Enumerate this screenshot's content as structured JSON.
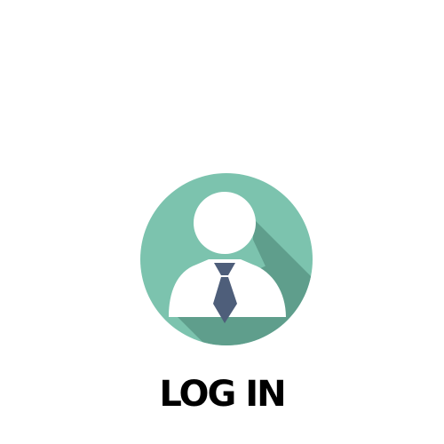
{
  "login": {
    "label": "LOG IN",
    "icon": "user-avatar-icon"
  },
  "colors": {
    "background": "#ffffff",
    "circle": "#7cc3ae",
    "shadow": "#5f9e8c",
    "figure": "#ffffff",
    "tie": "#4e5e7a",
    "text": "#000000"
  }
}
